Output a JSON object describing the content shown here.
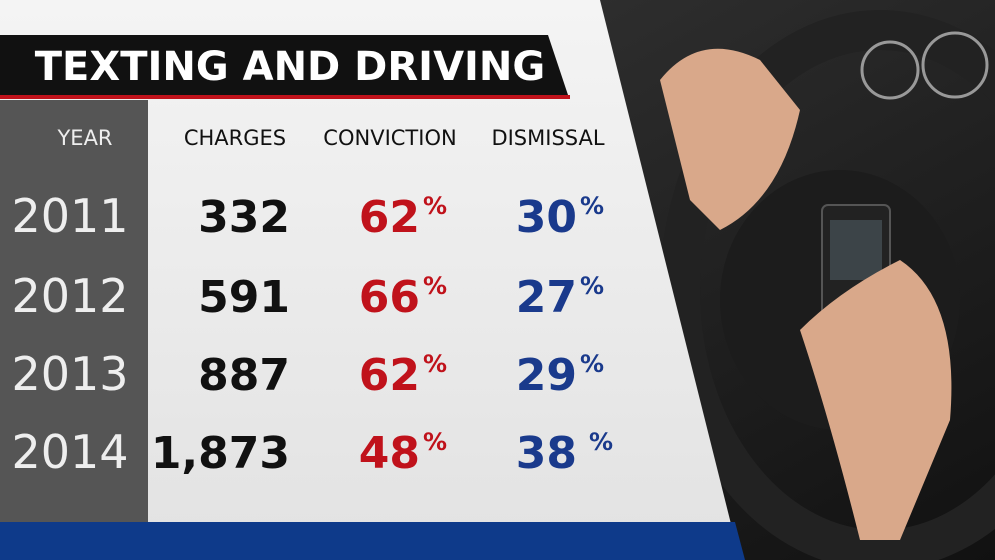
{
  "header": {
    "title": "TEXTING AND DRIVING"
  },
  "table": {
    "columns": [
      "YEAR",
      "CHARGES",
      "CONVICTION",
      "DISMISSAL"
    ],
    "rows": [
      {
        "year": "2011",
        "charges": "332",
        "conviction": {
          "value": "62",
          "unit": "%"
        },
        "dismissal": {
          "value": "30",
          "unit": "%"
        }
      },
      {
        "year": "2012",
        "charges": "591",
        "conviction": {
          "value": "66",
          "unit": "%"
        },
        "dismissal": {
          "value": "27",
          "unit": "%"
        }
      },
      {
        "year": "2013",
        "charges": "887",
        "conviction": {
          "value": "62",
          "unit": "%"
        },
        "dismissal": {
          "value": "29",
          "unit": "%"
        }
      },
      {
        "year": "2014",
        "charges": "1,873",
        "conviction": {
          "value": "48",
          "unit": "%"
        },
        "dismissal": {
          "value": "38",
          "unit": "%"
        }
      }
    ]
  }
}
